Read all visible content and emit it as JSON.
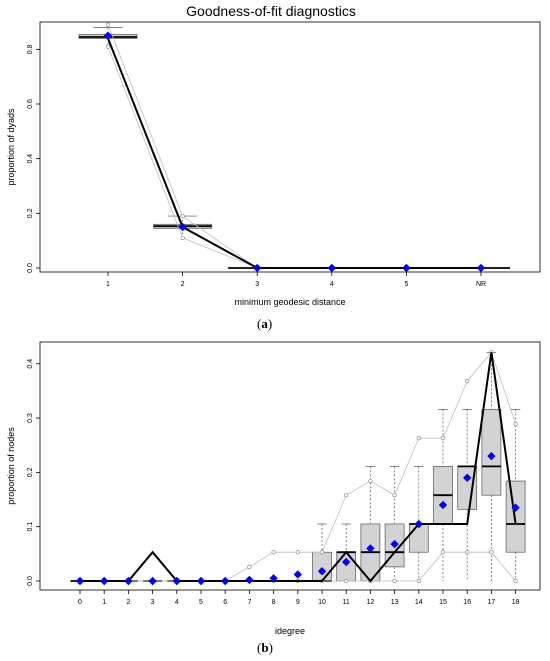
{
  "figure": {
    "title": "Goodness-of-fit diagnostics",
    "captions": [
      "(a)",
      "(b)"
    ],
    "caption_letters": [
      "a",
      "b"
    ]
  },
  "chart_data": [
    {
      "type": "box",
      "title": "Goodness-of-fit diagnostics",
      "xlabel": "minimum geodesic distance",
      "ylabel": "proportion of dyads",
      "categories": [
        "1",
        "2",
        "3",
        "4",
        "5",
        "NR"
      ],
      "ylim": [
        0,
        0.9
      ],
      "yticks": [
        0.0,
        0.2,
        0.4,
        0.6,
        0.8
      ],
      "ytick_labels": [
        "0.0",
        "0.2",
        "0.4",
        "0.6",
        "0.8"
      ],
      "grid": false,
      "observed": [
        0.84,
        0.15,
        0.0,
        0.0,
        0.0,
        0.0
      ],
      "simulated_mean": [
        0.85,
        0.15,
        0.0,
        0.0,
        0.0,
        0.0
      ],
      "boxes": [
        {
          "category": "1",
          "whisker_low": 0.81,
          "q1": 0.84,
          "median": 0.845,
          "q3": 0.855,
          "whisker_high": 0.88
        },
        {
          "category": "2",
          "whisker_low": 0.12,
          "q1": 0.145,
          "median": 0.153,
          "q3": 0.16,
          "whisker_high": 0.19
        },
        {
          "category": "3",
          "whisker_low": 0.0,
          "q1": 0.0,
          "median": 0.0,
          "q3": 0.0,
          "whisker_high": 0.0
        },
        {
          "category": "4",
          "whisker_low": 0.0,
          "q1": 0.0,
          "median": 0.0,
          "q3": 0.0,
          "whisker_high": 0.0
        },
        {
          "category": "5",
          "whisker_low": 0.0,
          "q1": 0.0,
          "median": 0.0,
          "q3": 0.0,
          "whisker_high": 0.0
        },
        {
          "category": "NR",
          "whisker_low": 0.0,
          "q1": 0.0,
          "median": 0.0,
          "q3": 0.0,
          "whisker_high": 0.0
        }
      ],
      "ci_low": [
        0.81,
        0.11,
        0.0,
        0.0,
        0.0,
        0.0
      ],
      "ci_high": [
        0.89,
        0.19,
        0.0,
        0.0,
        0.0,
        0.0
      ],
      "colors": {
        "observed": "#000000",
        "mean": "#0000ff",
        "box_fill": "#d3d3d3",
        "ci": "#bebebe"
      }
    },
    {
      "type": "box",
      "title": "",
      "xlabel": "idegree",
      "ylabel": "proportion of nodes",
      "categories": [
        "0",
        "1",
        "2",
        "3",
        "4",
        "5",
        "6",
        "7",
        "8",
        "9",
        "10",
        "11",
        "12",
        "13",
        "14",
        "15",
        "16",
        "17",
        "18"
      ],
      "ylim": [
        0,
        0.44
      ],
      "yticks": [
        0.0,
        0.1,
        0.2,
        0.3,
        0.4
      ],
      "ytick_labels": [
        "0.0",
        "0.1",
        "0.2",
        "0.3",
        "0.4"
      ],
      "grid": false,
      "observed": [
        0,
        0,
        0,
        0.053,
        0,
        0,
        0,
        0,
        0,
        0,
        0,
        0.053,
        0,
        0.053,
        0.105,
        0.105,
        0.105,
        0.421,
        0.105
      ],
      "simulated_mean": [
        0,
        0,
        0,
        0,
        0,
        0,
        0,
        0.002,
        0.005,
        0.012,
        0.018,
        0.035,
        0.06,
        0.068,
        0.105,
        0.14,
        0.19,
        0.23,
        0.135
      ],
      "boxes": [
        {
          "category": "0",
          "whisker_low": 0,
          "q1": 0,
          "median": 0,
          "q3": 0,
          "whisker_high": 0
        },
        {
          "category": "1",
          "whisker_low": 0,
          "q1": 0,
          "median": 0,
          "q3": 0,
          "whisker_high": 0
        },
        {
          "category": "2",
          "whisker_low": 0,
          "q1": 0,
          "median": 0,
          "q3": 0,
          "whisker_high": 0
        },
        {
          "category": "3",
          "whisker_low": 0,
          "q1": 0,
          "median": 0,
          "q3": 0,
          "whisker_high": 0
        },
        {
          "category": "4",
          "whisker_low": 0,
          "q1": 0,
          "median": 0,
          "q3": 0,
          "whisker_high": 0
        },
        {
          "category": "5",
          "whisker_low": 0,
          "q1": 0,
          "median": 0,
          "q3": 0,
          "whisker_high": 0
        },
        {
          "category": "6",
          "whisker_low": 0,
          "q1": 0,
          "median": 0,
          "q3": 0,
          "whisker_high": 0
        },
        {
          "category": "7",
          "whisker_low": 0,
          "q1": 0,
          "median": 0,
          "q3": 0,
          "whisker_high": 0
        },
        {
          "category": "8",
          "whisker_low": 0,
          "q1": 0,
          "median": 0,
          "q3": 0,
          "whisker_high": 0
        },
        {
          "category": "9",
          "whisker_low": 0,
          "q1": 0,
          "median": 0,
          "q3": 0,
          "whisker_high": 0
        },
        {
          "category": "10",
          "whisker_low": 0,
          "q1": 0,
          "median": 0,
          "q3": 0.053,
          "whisker_high": 0.105
        },
        {
          "category": "11",
          "whisker_low": 0,
          "q1": 0,
          "median": 0.053,
          "q3": 0.053,
          "whisker_high": 0.105
        },
        {
          "category": "12",
          "whisker_low": 0,
          "q1": 0,
          "median": 0.053,
          "q3": 0.105,
          "whisker_high": 0.211
        },
        {
          "category": "13",
          "whisker_low": 0,
          "q1": 0.026,
          "median": 0.053,
          "q3": 0.105,
          "whisker_high": 0.211
        },
        {
          "category": "14",
          "whisker_low": 0,
          "q1": 0.053,
          "median": 0.105,
          "q3": 0.105,
          "whisker_high": 0.211
        },
        {
          "category": "15",
          "whisker_low": 0,
          "q1": 0.105,
          "median": 0.158,
          "q3": 0.211,
          "whisker_high": 0.316
        },
        {
          "category": "16",
          "whisker_low": 0,
          "q1": 0.132,
          "median": 0.211,
          "q3": 0.211,
          "whisker_high": 0.316
        },
        {
          "category": "17",
          "whisker_low": 0,
          "q1": 0.158,
          "median": 0.211,
          "q3": 0.316,
          "whisker_high": 0.421
        },
        {
          "category": "18",
          "whisker_low": 0,
          "q1": 0.053,
          "median": 0.105,
          "q3": 0.184,
          "whisker_high": 0.316
        }
      ],
      "ci_low": [
        0,
        0,
        0,
        0,
        0,
        0,
        0,
        0,
        0,
        0,
        0,
        0,
        0,
        0,
        0,
        0.053,
        0.053,
        0.053,
        0
      ],
      "ci_high": [
        0,
        0,
        0,
        0,
        0,
        0,
        0,
        0.026,
        0.053,
        0.053,
        0.053,
        0.158,
        0.184,
        0.158,
        0.263,
        0.263,
        0.368,
        0.421,
        0.289
      ],
      "colors": {
        "observed": "#000000",
        "mean": "#0000ff",
        "box_fill": "#d3d3d3",
        "ci": "#bebebe"
      }
    }
  ]
}
